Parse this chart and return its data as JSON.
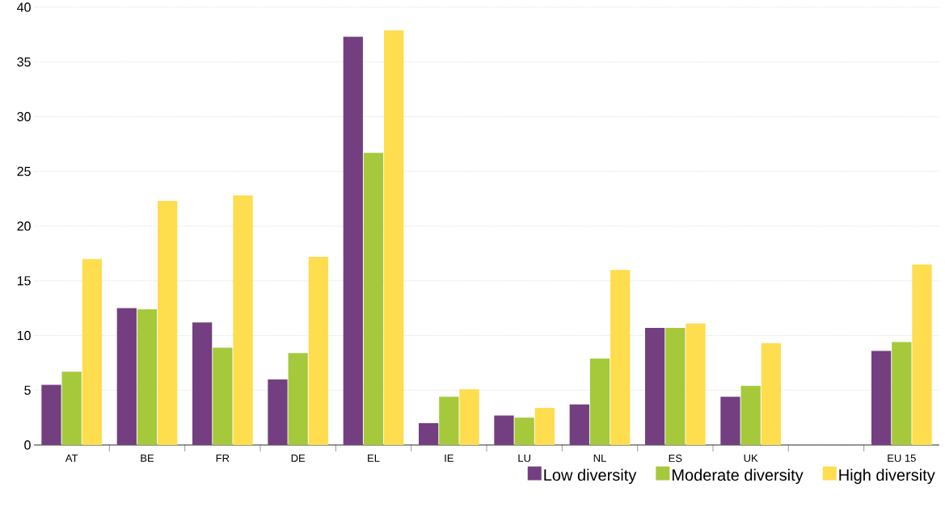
{
  "chart_data": {
    "type": "bar",
    "categories": [
      "AT",
      "BE",
      "FR",
      "DE",
      "EL",
      "IE",
      "LU",
      "NL",
      "ES",
      "UK",
      null,
      "EU 15"
    ],
    "series": [
      {
        "name": "Low diversity",
        "color": "#733f80",
        "values": [
          5.5,
          12.5,
          11.2,
          6.0,
          37.3,
          2.0,
          2.7,
          3.7,
          10.7,
          4.4,
          null,
          8.6
        ]
      },
      {
        "name": "Moderate diversity",
        "color": "#a5c93a",
        "values": [
          6.7,
          12.4,
          8.9,
          8.4,
          26.7,
          4.4,
          2.5,
          7.9,
          10.7,
          5.4,
          null,
          9.4
        ]
      },
      {
        "name": "High diversity",
        "color": "#fedd4e",
        "values": [
          17.0,
          22.3,
          22.8,
          17.2,
          37.9,
          5.1,
          3.4,
          16.0,
          11.1,
          9.3,
          null,
          16.5
        ]
      }
    ],
    "ylim": [
      0,
      40
    ],
    "yticks": [
      0,
      5,
      10,
      15,
      20,
      25,
      30,
      35,
      40
    ],
    "grid": "y",
    "legend": "bottom right"
  }
}
